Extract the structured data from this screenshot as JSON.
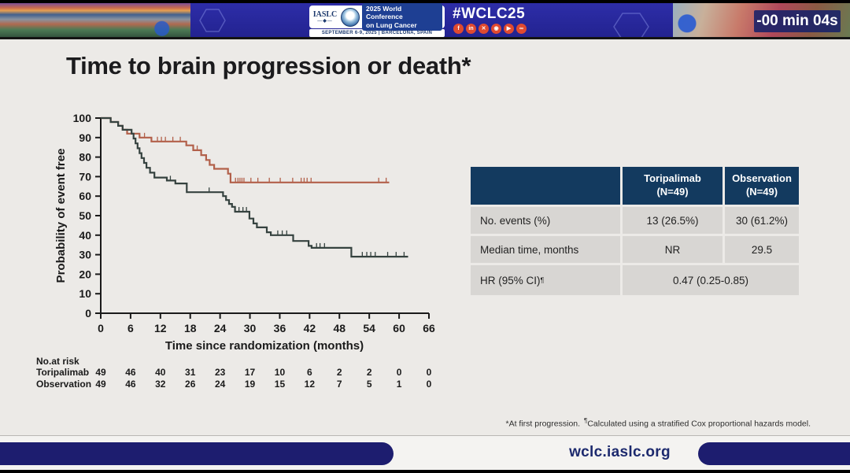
{
  "banner": {
    "logo_text": "IASLC",
    "conference_line1": "2025 World Conference",
    "conference_line2": "on Lung Cancer",
    "dates_line": "SEPTEMBER 6-9, 2025  |  BARCELONA, SPAIN",
    "hashtag": "#WCLC25",
    "timer": "-00 min 04s",
    "social": [
      {
        "name": "facebook",
        "glyph": "f"
      },
      {
        "name": "linkedin",
        "glyph": "in"
      },
      {
        "name": "x",
        "glyph": "✕"
      },
      {
        "name": "instagram",
        "glyph": "◉"
      },
      {
        "name": "youtube",
        "glyph": "▶"
      },
      {
        "name": "link",
        "glyph": "∞"
      }
    ]
  },
  "slide": {
    "title": "Time to brain progression or death*",
    "footnote_pre": "*At first progression.",
    "footnote_sup": "¶",
    "footnote_rest": "Calculated using a stratified Cox proportional hazards model."
  },
  "results_table": {
    "header": {
      "toripalimab": {
        "line1": "Toripalimab",
        "line2": "(N=49)"
      },
      "observation": {
        "line1": "Observation",
        "line2": "(N=49)"
      }
    },
    "rows": [
      {
        "label": "No. events (%)",
        "toripalimab": "13 (26.5%)",
        "observation": "30 (61.2%)"
      },
      {
        "label": "Median time, months",
        "toripalimab": "NR",
        "observation": "29.5"
      },
      {
        "label": "HR (95% CI)",
        "label_sup": "¶",
        "merged": "0.47 (0.25-0.85)"
      }
    ]
  },
  "footer": {
    "url": "wclc.iaslc.org"
  },
  "colors": {
    "table_header_navy": "#133a5f",
    "table_row_gray": "#d8d6d3",
    "pill_navy": "#1d1d6f",
    "toripalimab_curve": "#b2604a",
    "observation_curve": "#35423f",
    "social_red": "#e04a30",
    "banner_blue": "#2a2aa0"
  },
  "chart_data": {
    "type": "line",
    "subtype": "kaplan-meier-step",
    "title": "",
    "xlabel": "Time since randomization (months)",
    "ylabel": "Probability of event free",
    "xlim": [
      0,
      66
    ],
    "ylim": [
      0,
      100
    ],
    "x_ticks": [
      0,
      6,
      12,
      18,
      24,
      30,
      36,
      42,
      48,
      54,
      60,
      66
    ],
    "y_ticks": [
      0,
      10,
      20,
      30,
      40,
      50,
      60,
      70,
      80,
      90,
      100
    ],
    "grid": false,
    "legend": "none",
    "series": [
      {
        "name": "Toripalimab",
        "color": "#b2604a",
        "steps": [
          [
            2,
            98
          ],
          [
            3.5,
            96
          ],
          [
            4.4,
            94
          ],
          [
            5.3,
            92
          ],
          [
            7.8,
            90
          ],
          [
            10.2,
            88
          ],
          [
            17.2,
            86
          ],
          [
            18.6,
            83.5
          ],
          [
            20.2,
            81
          ],
          [
            21.2,
            78.5
          ],
          [
            21.9,
            76
          ],
          [
            22.8,
            74
          ],
          [
            25.6,
            71.5
          ],
          [
            26.1,
            67
          ]
        ],
        "end": 58,
        "censors": [
          [
            8.8,
            90
          ],
          [
            11.4,
            88
          ],
          [
            12.2,
            88
          ],
          [
            13.0,
            88
          ],
          [
            14.5,
            88
          ],
          [
            16.0,
            88
          ],
          [
            19.4,
            83.5
          ],
          [
            27.1,
            67
          ],
          [
            27.6,
            67
          ],
          [
            28.0,
            67
          ],
          [
            28.4,
            67
          ],
          [
            28.8,
            67
          ],
          [
            30.2,
            67
          ],
          [
            31.6,
            67
          ],
          [
            33.9,
            67
          ],
          [
            36.1,
            67
          ],
          [
            38.6,
            67
          ],
          [
            40.3,
            67
          ],
          [
            40.9,
            67
          ],
          [
            41.5,
            67
          ],
          [
            42.3,
            67
          ],
          [
            55.9,
            67
          ],
          [
            57.4,
            67
          ]
        ]
      },
      {
        "name": "Observation",
        "color": "#35423f",
        "steps": [
          [
            2,
            98
          ],
          [
            3.5,
            96
          ],
          [
            4.4,
            94
          ],
          [
            6.2,
            92
          ],
          [
            6.6,
            89.5
          ],
          [
            7.0,
            87
          ],
          [
            7.4,
            84.5
          ],
          [
            7.8,
            82
          ],
          [
            8.2,
            79.5
          ],
          [
            8.7,
            77
          ],
          [
            9.2,
            74.5
          ],
          [
            9.9,
            72
          ],
          [
            10.8,
            69.5
          ],
          [
            13.3,
            68
          ],
          [
            15.0,
            66.5
          ],
          [
            17.3,
            62
          ],
          [
            24.6,
            60
          ],
          [
            25.2,
            58
          ],
          [
            25.8,
            56
          ],
          [
            26.4,
            54.5
          ],
          [
            27.0,
            52
          ],
          [
            29.9,
            48.5
          ],
          [
            30.7,
            46
          ],
          [
            31.4,
            44
          ],
          [
            33.4,
            41.5
          ],
          [
            34.2,
            40
          ],
          [
            38.7,
            37
          ],
          [
            41.8,
            34.5
          ],
          [
            42.4,
            33.5
          ],
          [
            50.4,
            29
          ]
        ],
        "end": 61.8,
        "censors": [
          [
            14.0,
            68
          ],
          [
            21.8,
            62
          ],
          [
            27.8,
            52
          ],
          [
            28.6,
            52
          ],
          [
            29.3,
            52
          ],
          [
            35.6,
            40
          ],
          [
            36.5,
            40
          ],
          [
            37.4,
            40
          ],
          [
            43.4,
            33.5
          ],
          [
            44.1,
            33.5
          ],
          [
            45.0,
            33.5
          ],
          [
            52.6,
            29
          ],
          [
            53.5,
            29
          ],
          [
            54.3,
            29
          ],
          [
            55.2,
            29
          ],
          [
            57.7,
            29
          ],
          [
            59.4,
            29
          ],
          [
            61.0,
            29
          ]
        ]
      }
    ],
    "at_risk": {
      "label": "No.at risk",
      "rows": [
        {
          "name": "Toripalimab",
          "counts": [
            49,
            46,
            40,
            31,
            23,
            17,
            10,
            6,
            2,
            2,
            0,
            0
          ]
        },
        {
          "name": "Observation",
          "counts": [
            49,
            46,
            32,
            26,
            24,
            19,
            15,
            12,
            7,
            5,
            1,
            0
          ]
        }
      ]
    }
  }
}
